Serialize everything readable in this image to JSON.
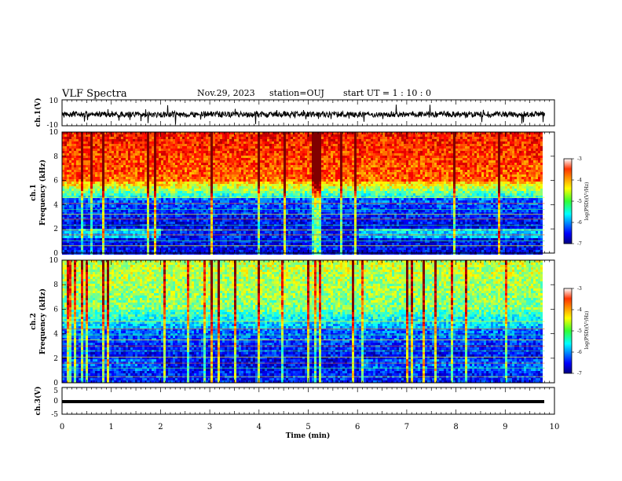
{
  "header": {
    "title": "VLF Spectra",
    "date": "Nov.29, 2023",
    "station": "station=OUJ",
    "start": "start  UT =   1 : 10 : 0"
  },
  "chart_data": [
    {
      "type": "line",
      "name": "ch1-waveform",
      "ylabel": "ch.1(V)",
      "ylim": [
        -10,
        10
      ],
      "yticks": [
        "10",
        "-10"
      ],
      "xlim": [
        0,
        10
      ],
      "approx_range": [
        -5,
        5
      ]
    },
    {
      "type": "heatmap",
      "name": "ch1-spectrogram",
      "ylabel_line1": "ch.1",
      "ylabel_line2": "Frequency  (kHz)",
      "ylim": [
        0,
        10
      ],
      "yticks": [
        "0",
        "2",
        "4",
        "6",
        "8",
        "10"
      ],
      "xlim": [
        0,
        9.8
      ],
      "colorbar": {
        "label": "log(PSD)(V²/Hz)",
        "ticks": [
          "-3",
          "-4",
          "-5",
          "-6",
          "-7"
        ],
        "range": [
          -7,
          -3
        ]
      }
    },
    {
      "type": "heatmap",
      "name": "ch2-spectrogram",
      "ylabel_line1": "ch.2",
      "ylabel_line2": "Frequency  (kHz)",
      "ylim": [
        0,
        10
      ],
      "yticks": [
        "0",
        "2",
        "4",
        "6",
        "8",
        "10"
      ],
      "xlim": [
        0,
        9.8
      ],
      "colorbar": {
        "label": "log(PSD)(V²/Hz)",
        "ticks": [
          "-3",
          "-4",
          "-5",
          "-6",
          "-7"
        ],
        "range": [
          -7,
          -3
        ]
      }
    },
    {
      "type": "line",
      "name": "ch3-waveform",
      "ylabel": "ch.3(V)",
      "ylim": [
        -5,
        5
      ],
      "yticks": [
        "5",
        "0",
        "-5"
      ],
      "xlim": [
        0,
        10
      ],
      "approx_value": -0.5
    }
  ],
  "xaxis": {
    "label": "Time  (min)",
    "ticks": [
      "0",
      "1",
      "2",
      "3",
      "4",
      "5",
      "6",
      "7",
      "8",
      "9",
      "10"
    ],
    "range": [
      0,
      10
    ]
  }
}
